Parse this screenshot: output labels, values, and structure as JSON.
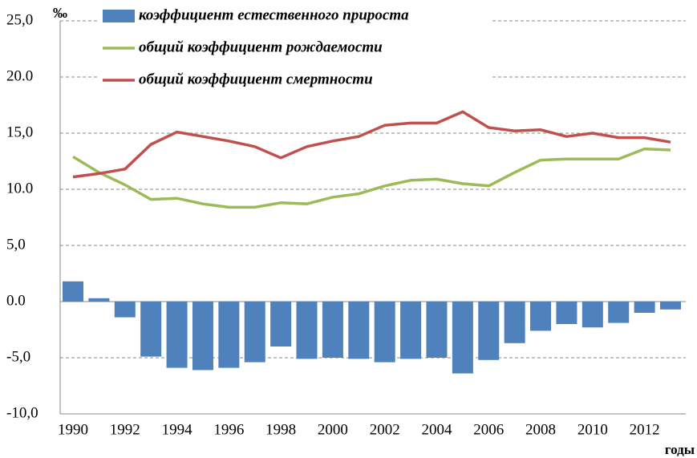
{
  "chart_data": {
    "type": "bar-line",
    "unit_label": "‰",
    "x_label": "годы",
    "categories": [
      "1990",
      null,
      "1992",
      null,
      "1994",
      null,
      "1996",
      null,
      "1998",
      null,
      "2000",
      null,
      "2002",
      null,
      "2004",
      null,
      "2006",
      null,
      "2008",
      null,
      "2010",
      null,
      "2012",
      null
    ],
    "series": [
      {
        "name": "коэффициент естественного прироста",
        "type": "bar",
        "color": "#4f81bd",
        "values": [
          1.8,
          0.3,
          -1.4,
          -4.9,
          -5.9,
          -6.1,
          -5.9,
          -5.4,
          -4.0,
          -5.1,
          -5.0,
          -5.1,
          -5.4,
          -5.1,
          -5.0,
          -6.4,
          -5.2,
          -3.7,
          -2.6,
          -2.0,
          -2.3,
          -1.9,
          -1.0,
          -0.7
        ]
      },
      {
        "name": "общий коэффициент рождаемости",
        "type": "line",
        "color": "#9bbb59",
        "values": [
          12.9,
          11.5,
          10.4,
          9.1,
          9.2,
          8.7,
          8.4,
          8.4,
          8.8,
          8.7,
          9.3,
          9.6,
          10.3,
          10.8,
          10.9,
          10.5,
          10.3,
          11.5,
          12.6,
          12.7,
          12.7,
          12.7,
          13.6,
          13.5
        ]
      },
      {
        "name": "общий коэффициент смертности",
        "type": "line",
        "color": "#c0504d",
        "values": [
          11.1,
          11.4,
          11.8,
          14.0,
          15.1,
          14.7,
          14.3,
          13.8,
          12.8,
          13.8,
          14.3,
          14.7,
          15.7,
          15.9,
          15.9,
          16.9,
          15.5,
          15.2,
          15.3,
          14.7,
          15.0,
          14.6,
          14.6,
          14.2
        ]
      }
    ],
    "ylim": [
      -10,
      25
    ],
    "yticks": [
      {
        "value": -10,
        "label": "-10,0"
      },
      {
        "value": -5,
        "label": "-5,0"
      },
      {
        "value": 0,
        "label": "0.0"
      },
      {
        "value": 5,
        "label": "5,0"
      },
      {
        "value": 10,
        "label": "10.0"
      },
      {
        "value": 15,
        "label": "15,0"
      },
      {
        "value": 20,
        "label": "20.0"
      },
      {
        "value": 25,
        "label": "25,0"
      }
    ],
    "grid": true
  }
}
